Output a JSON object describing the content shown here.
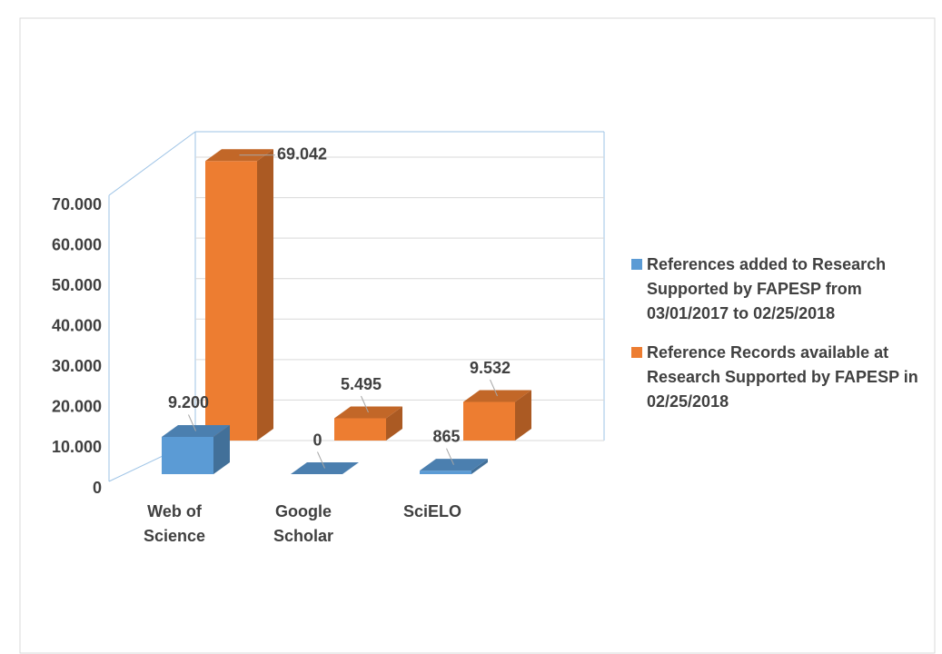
{
  "chart_data": {
    "type": "bar3d",
    "categories": [
      "Web of Science",
      "Google Scholar",
      "SciELO"
    ],
    "series": [
      {
        "name": "References added to Research Supported by FAPESP from 03/01/2017 to 02/25/2018",
        "color": "#5b9bd5",
        "values": [
          9200,
          0,
          865
        ],
        "value_labels": [
          "9.200",
          "0",
          "865"
        ]
      },
      {
        "name": "Reference Records available at Research Supported by FAPESP in 02/25/2018",
        "color": "#ed7d31",
        "values": [
          69042,
          5495,
          9532
        ],
        "value_labels": [
          "69.042",
          "5.495",
          "9.532"
        ]
      }
    ],
    "ylim": [
      0,
      70000
    ],
    "yticks": [
      0,
      {
        "value": 10000,
        "label": "10.000"
      },
      {
        "value": 20000,
        "label": "20.000"
      },
      {
        "value": 30000,
        "label": "30.000"
      },
      {
        "value": 40000,
        "label": "40.000"
      },
      {
        "value": 50000,
        "label": "50.000"
      },
      {
        "value": 60000,
        "label": "60.000"
      },
      {
        "value": 70000,
        "label": "70.000"
      }
    ],
    "grid": true
  }
}
